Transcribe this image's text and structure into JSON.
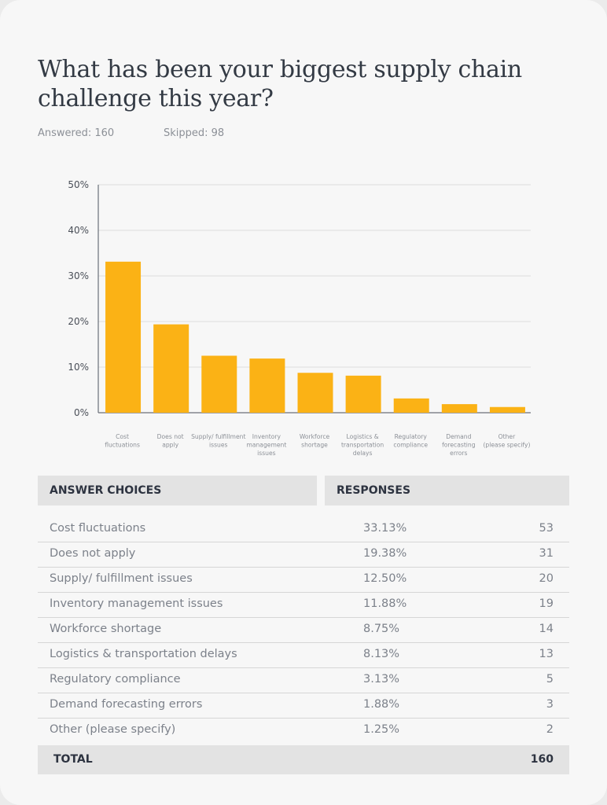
{
  "question": {
    "title": "What has been your biggest supply chain challenge this year?",
    "answered": "Answered: 160",
    "skipped": "Skipped: 98"
  },
  "chart_data": {
    "type": "bar",
    "categories": [
      [
        "Cost",
        "fluctuations"
      ],
      [
        "Does not",
        "apply"
      ],
      [
        "Supply/ fulfillment",
        "issues"
      ],
      [
        "Inventory",
        "management",
        "issues"
      ],
      [
        "Workforce",
        "shortage"
      ],
      [
        "Logistics &",
        "transportation",
        "delays"
      ],
      [
        "Regulatory",
        "compliance"
      ],
      [
        "Demand",
        "forecasting",
        "errors"
      ],
      [
        "Other",
        "(please specify)"
      ]
    ],
    "values": [
      33.13,
      19.38,
      12.5,
      11.88,
      8.75,
      8.13,
      3.13,
      1.88,
      1.25
    ],
    "ylim": [
      0,
      50
    ],
    "yticks": [
      "0%",
      "10%",
      "20%",
      "30%",
      "40%",
      "50%"
    ],
    "bar_color": "#fbb215",
    "grid": true
  },
  "table": {
    "headers": {
      "choices": "ANSWER CHOICES",
      "responses": "RESPONSES"
    },
    "rows": [
      {
        "label": "Cost fluctuations",
        "pct": "33.13%",
        "count": "53"
      },
      {
        "label": "Does not apply",
        "pct": "19.38%",
        "count": "31"
      },
      {
        "label": "Supply/ fulfillment issues",
        "pct": "12.50%",
        "count": "20"
      },
      {
        "label": "Inventory management issues",
        "pct": "11.88%",
        "count": "19"
      },
      {
        "label": "Workforce shortage",
        "pct": "8.75%",
        "count": "14"
      },
      {
        "label": "Logistics & transportation delays",
        "pct": "8.13%",
        "count": "13"
      },
      {
        "label": "Regulatory compliance",
        "pct": "3.13%",
        "count": "5"
      },
      {
        "label": "Demand forecasting errors",
        "pct": "1.88%",
        "count": "3"
      },
      {
        "label": "Other (please specify)",
        "pct": "1.25%",
        "count": "2"
      }
    ],
    "total_label": "TOTAL",
    "total_value": "160"
  }
}
